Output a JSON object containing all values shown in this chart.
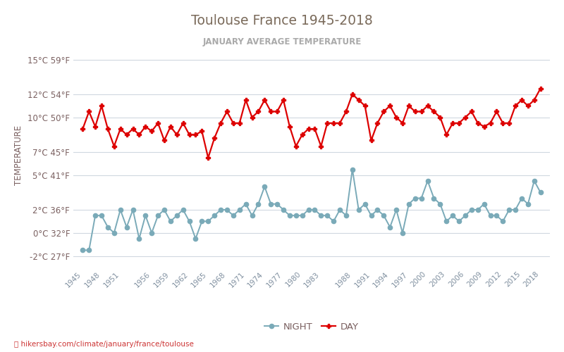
{
  "title": "Toulouse France 1945-2018",
  "subtitle": "JANUARY AVERAGE TEMPERATURE",
  "ylabel": "TEMPERATURE",
  "footer": "hikersbay.com/climate/january/france/toulouse",
  "legend_night": "NIGHT",
  "legend_day": "DAY",
  "years": [
    1945,
    1946,
    1947,
    1948,
    1949,
    1950,
    1951,
    1952,
    1953,
    1954,
    1955,
    1956,
    1957,
    1958,
    1959,
    1960,
    1961,
    1962,
    1963,
    1964,
    1965,
    1966,
    1967,
    1968,
    1969,
    1970,
    1971,
    1972,
    1973,
    1974,
    1975,
    1976,
    1977,
    1978,
    1979,
    1980,
    1981,
    1982,
    1983,
    1984,
    1985,
    1986,
    1987,
    1988,
    1989,
    1990,
    1991,
    1992,
    1993,
    1994,
    1995,
    1996,
    1997,
    1998,
    1999,
    2000,
    2001,
    2002,
    2003,
    2004,
    2005,
    2006,
    2007,
    2008,
    2009,
    2010,
    2011,
    2012,
    2013,
    2014,
    2015,
    2016,
    2017,
    2018
  ],
  "day": [
    9.0,
    10.5,
    9.2,
    11.0,
    9.0,
    7.5,
    9.0,
    8.5,
    9.0,
    8.5,
    9.2,
    8.8,
    9.5,
    8.0,
    9.2,
    8.5,
    9.5,
    8.5,
    8.5,
    8.8,
    6.5,
    8.2,
    9.5,
    10.5,
    9.5,
    9.5,
    11.5,
    10.0,
    10.5,
    11.5,
    10.5,
    10.5,
    11.5,
    9.2,
    7.5,
    8.5,
    9.0,
    9.0,
    7.5,
    9.5,
    9.5,
    9.5,
    10.5,
    12.0,
    11.5,
    11.0,
    8.0,
    9.5,
    10.5,
    11.0,
    10.0,
    9.5,
    11.0,
    10.5,
    10.5,
    11.0,
    10.5,
    10.0,
    8.5,
    9.5,
    9.5,
    10.0,
    10.5,
    9.5,
    9.2,
    9.5,
    10.5,
    9.5,
    9.5,
    11.0,
    11.5,
    11.0,
    11.5,
    12.5
  ],
  "night": [
    -1.5,
    -1.5,
    1.5,
    1.5,
    0.5,
    0.0,
    2.0,
    0.5,
    2.0,
    -0.5,
    1.5,
    0.0,
    1.5,
    2.0,
    1.0,
    1.5,
    2.0,
    1.0,
    -0.5,
    1.0,
    1.0,
    1.5,
    2.0,
    2.0,
    1.5,
    2.0,
    2.5,
    1.5,
    2.5,
    4.0,
    2.5,
    2.5,
    2.0,
    1.5,
    1.5,
    1.5,
    2.0,
    2.0,
    1.5,
    1.5,
    1.0,
    2.0,
    1.5,
    5.5,
    2.0,
    2.5,
    1.5,
    2.0,
    1.5,
    0.5,
    2.0,
    0.0,
    2.5,
    3.0,
    3.0,
    4.5,
    3.0,
    2.5,
    1.0,
    1.5,
    1.0,
    1.5,
    2.0,
    2.0,
    2.5,
    1.5,
    1.5,
    1.0,
    2.0,
    2.0,
    3.0,
    2.5,
    4.5,
    3.5
  ],
  "yticks_c": [
    -2,
    0,
    2,
    5,
    7,
    10,
    12,
    15
  ],
  "yticks_f": [
    27,
    32,
    36,
    41,
    45,
    50,
    54,
    59
  ],
  "xtick_years": [
    1945,
    1948,
    1951,
    1956,
    1959,
    1962,
    1965,
    1968,
    1971,
    1974,
    1977,
    1980,
    1983,
    1988,
    1991,
    1994,
    1997,
    2000,
    2003,
    2006,
    2009,
    2012,
    2015,
    2018
  ],
  "ylim_min": -3.0,
  "ylim_max": 16.5,
  "xlim_min": 1943.5,
  "xlim_max": 2019.5,
  "day_color": "#dd0000",
  "night_color": "#7AAAB8",
  "grid_color": "#d0d8e0",
  "title_color": "#7a6a5a",
  "subtitle_color": "#aaaaaa",
  "label_color": "#7a6060",
  "tick_color": "#8090a0",
  "bg_color": "#ffffff",
  "footer_color": "#cc3333"
}
